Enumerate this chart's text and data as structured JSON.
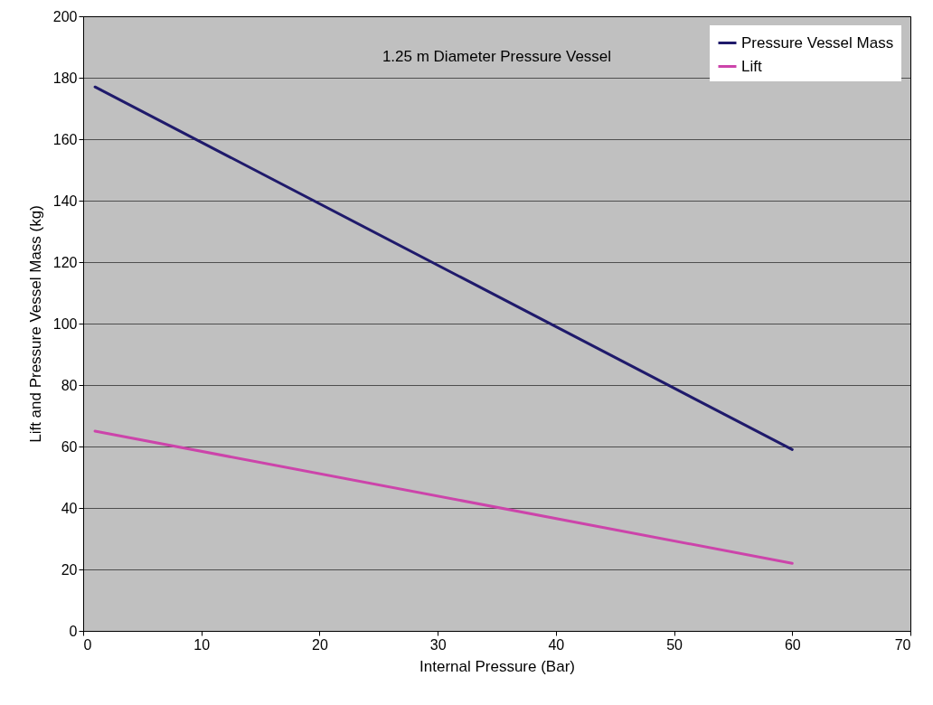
{
  "chart_data": {
    "type": "line",
    "title": "1.25 m Diameter Pressure Vessel",
    "xlabel": "Internal Pressure (Bar)",
    "ylabel": "Lift and Pressure Vessel Mass (kg)",
    "x": [
      1,
      60
    ],
    "series": [
      {
        "name": "Pressure Vessel Mass",
        "color": "#1f1a6b",
        "values": [
          177,
          59
        ]
      },
      {
        "name": "Lift",
        "color": "#cc44aa",
        "values": [
          65,
          22
        ]
      }
    ],
    "xlim": [
      0,
      70
    ],
    "xticks": [
      0,
      10,
      20,
      30,
      40,
      50,
      60,
      70
    ],
    "ylim": [
      0,
      200
    ],
    "yticks": [
      0,
      20,
      40,
      60,
      80,
      100,
      120,
      140,
      160,
      180,
      200
    ],
    "grid": "y",
    "legend": "top right",
    "marker": "none",
    "line_style": "solid"
  }
}
